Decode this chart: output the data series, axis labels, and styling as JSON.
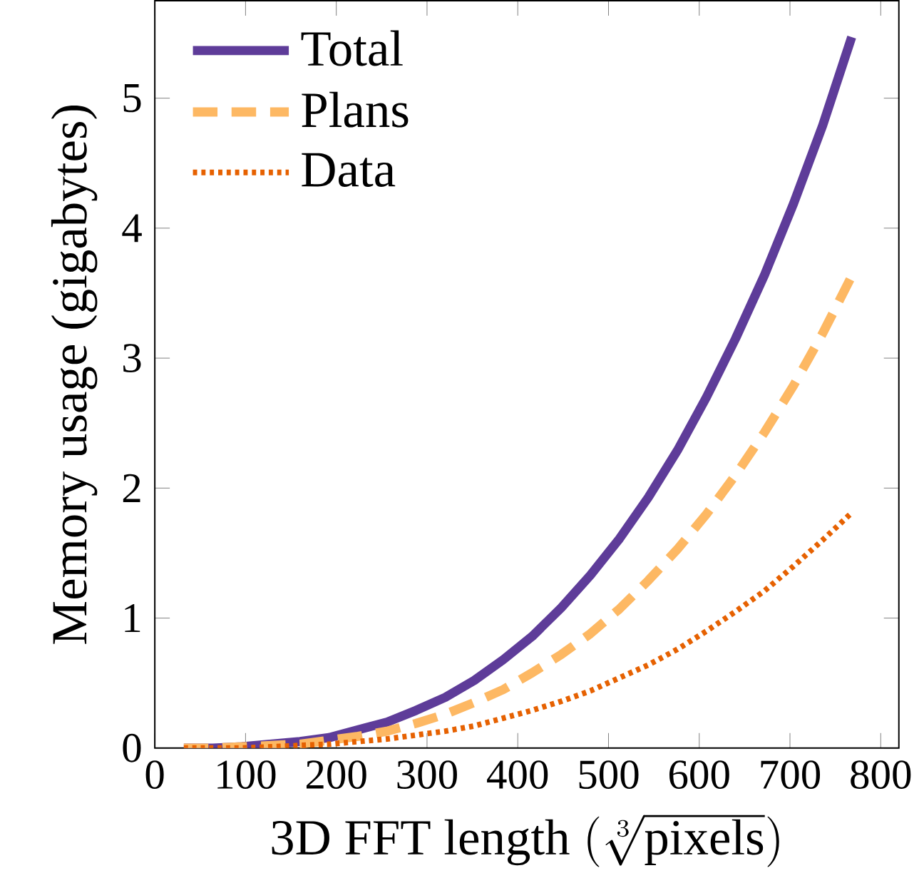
{
  "chart_data": {
    "type": "line",
    "xlabel": "\\mathrm{3D\\ FFT\\ length}\\ (\\sqrt[3]{\\mathrm{pixels}})",
    "ylabel": "Memory usage (gigabytes)",
    "x": [
      32,
      64,
      96,
      128,
      160,
      192,
      224,
      256,
      288,
      320,
      352,
      384,
      416,
      448,
      480,
      512,
      544,
      576,
      608,
      640,
      672,
      704,
      736,
      768
    ],
    "series": [
      {
        "name": "Total",
        "color": "#5e3c99",
        "line_style": "solid",
        "values": [
          0.0,
          0.0,
          0.01,
          0.03,
          0.05,
          0.08,
          0.14,
          0.2,
          0.29,
          0.39,
          0.52,
          0.68,
          0.86,
          1.08,
          1.33,
          1.61,
          1.93,
          2.29,
          2.7,
          3.15,
          3.64,
          4.19,
          4.79,
          5.47
        ]
      },
      {
        "name": "Plans",
        "color": "#fdb863",
        "line_style": "dashed",
        "values": [
          0.0,
          0.0,
          0.01,
          0.02,
          0.03,
          0.06,
          0.09,
          0.13,
          0.19,
          0.26,
          0.35,
          0.45,
          0.58,
          0.72,
          0.88,
          1.07,
          1.29,
          1.53,
          1.8,
          2.1,
          2.43,
          2.79,
          3.19,
          3.63
        ]
      },
      {
        "name": "Data",
        "color": "#e66101",
        "line_style": "dotted",
        "values": [
          0.0,
          0.0,
          0.0,
          0.01,
          0.02,
          0.03,
          0.05,
          0.07,
          0.1,
          0.13,
          0.17,
          0.23,
          0.29,
          0.36,
          0.44,
          0.54,
          0.64,
          0.76,
          0.9,
          1.05,
          1.21,
          1.4,
          1.6,
          1.81
        ]
      }
    ],
    "xlim": [
      0,
      820
    ],
    "ylim": [
      0,
      5.75
    ],
    "xticks": [
      0,
      100,
      200,
      300,
      400,
      500,
      600,
      700,
      800
    ],
    "yticks": [
      0,
      1,
      2,
      3,
      4,
      5
    ],
    "legend": "top left",
    "grid": false
  }
}
